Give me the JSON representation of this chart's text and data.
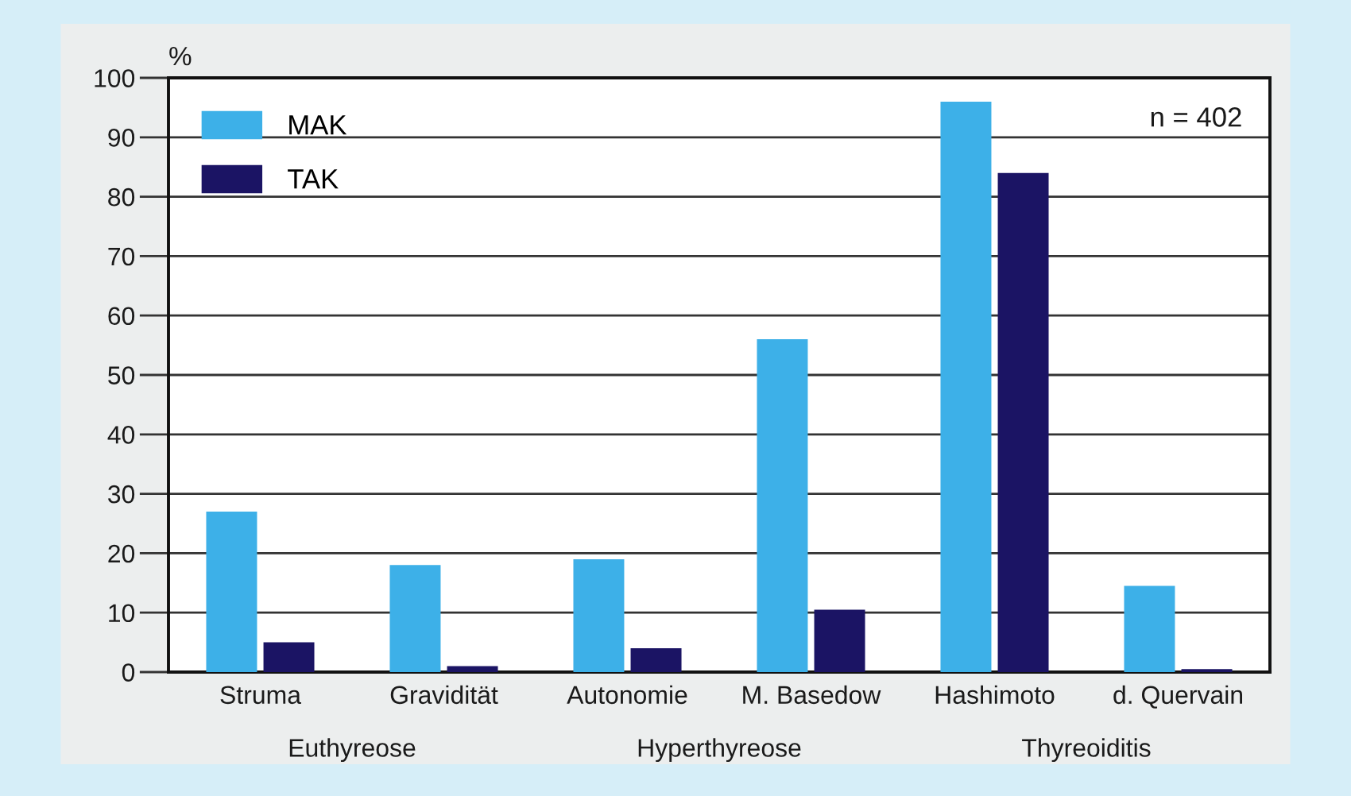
{
  "chart_data": {
    "type": "bar",
    "ylabel": "%",
    "categories": [
      "Struma",
      "Gravidität",
      "Autonomie",
      "M. Basedow",
      "Hashimoto",
      "d. Quervain"
    ],
    "series": [
      {
        "name": "MAK",
        "color": "#3db0e8",
        "values": [
          27,
          18,
          19,
          56,
          96,
          14.5
        ]
      },
      {
        "name": "TAK",
        "color": "#1b1464",
        "values": [
          5,
          1,
          4,
          10.5,
          84,
          0.5
        ]
      }
    ],
    "ylim": [
      0,
      100
    ],
    "yticks": [
      0,
      10,
      20,
      30,
      40,
      50,
      60,
      70,
      80,
      90,
      100
    ],
    "grid": "y",
    "legend": "top left",
    "annotations": [
      "n = 402",
      "Euthyreose",
      "Hyperthyreose",
      "Thyreoiditis"
    ]
  }
}
